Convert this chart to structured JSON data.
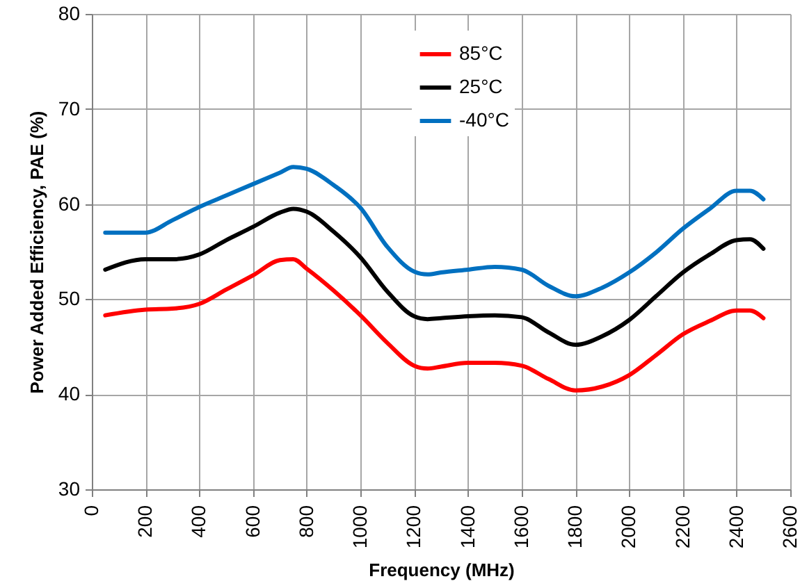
{
  "chart_data": {
    "type": "line",
    "xlabel": "Frequency (MHz)",
    "ylabel": "Power Added Efficiency, PAE (%)",
    "xlim": [
      0,
      2600
    ],
    "xticks": [
      0,
      200,
      400,
      600,
      800,
      1000,
      1200,
      1400,
      1600,
      1800,
      2000,
      2200,
      2400,
      2600
    ],
    "ylim": [
      30,
      80
    ],
    "yticks": [
      30,
      40,
      50,
      60,
      70,
      80
    ],
    "grid": true,
    "legend": "top",
    "line_style": "solid",
    "x": [
      50,
      200,
      300,
      400,
      500,
      600,
      700,
      750,
      800,
      900,
      1000,
      1100,
      1200,
      1250,
      1300,
      1400,
      1500,
      1600,
      1700,
      1800,
      1900,
      2000,
      2100,
      2200,
      2300,
      2400,
      2450,
      2500
    ],
    "series": [
      {
        "name": "85°C",
        "color": "#ff0000",
        "values": [
          48.3,
          48.9,
          49.0,
          49.5,
          51.0,
          52.5,
          54.1,
          54.2,
          53.2,
          50.9,
          48.3,
          45.4,
          43.0,
          42.7,
          42.9,
          43.3,
          43.3,
          43.0,
          41.6,
          40.4,
          40.8,
          42.0,
          44.1,
          46.3,
          47.7,
          48.8,
          48.8,
          48.0
        ]
      },
      {
        "name": "25°C",
        "color": "#000000",
        "values": [
          53.1,
          54.2,
          54.2,
          54.7,
          56.2,
          57.6,
          59.1,
          59.5,
          59.2,
          57.1,
          54.4,
          50.8,
          48.2,
          47.9,
          48.0,
          48.2,
          48.3,
          48.1,
          46.5,
          45.2,
          46.1,
          47.8,
          50.3,
          52.8,
          54.7,
          56.2,
          56.3,
          55.3
        ]
      },
      {
        "name": "-40°C",
        "color": "#0070c0",
        "values": [
          57.0,
          57.0,
          58.3,
          59.7,
          60.9,
          62.1,
          63.3,
          63.9,
          63.7,
          62.0,
          59.6,
          55.5,
          52.9,
          52.6,
          52.8,
          53.1,
          53.4,
          53.1,
          51.4,
          50.3,
          51.2,
          52.8,
          54.9,
          57.4,
          59.5,
          61.4,
          61.4,
          60.5
        ]
      }
    ]
  }
}
